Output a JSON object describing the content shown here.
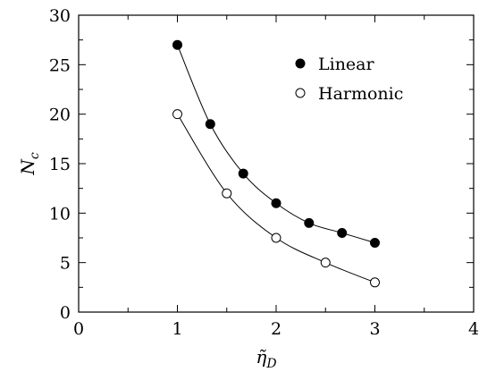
{
  "chart_data": {
    "type": "scatter",
    "title": "",
    "xlabel": "η̃",
    "xlabel_sub": "D",
    "ylabel": "N",
    "ylabel_sub": "c",
    "xlim": [
      0,
      4
    ],
    "ylim": [
      0,
      30
    ],
    "xticks": [
      0,
      1,
      2,
      3,
      4
    ],
    "yticks": [
      0,
      5,
      10,
      15,
      20,
      25,
      30
    ],
    "grid": false,
    "legend_position": "top-right",
    "series": [
      {
        "name": "Linear",
        "marker": "filled-circle",
        "color": "#000000",
        "x": [
          1,
          1.333,
          1.667,
          2,
          2.333,
          2.667,
          3
        ],
        "y": [
          27,
          19,
          14,
          11,
          9,
          8,
          7
        ]
      },
      {
        "name": "Harmonic",
        "marker": "open-circle",
        "color": "#000000",
        "x": [
          1,
          1.5,
          2,
          2.5,
          3
        ],
        "y": [
          20,
          12,
          7.5,
          5,
          3
        ]
      }
    ]
  }
}
